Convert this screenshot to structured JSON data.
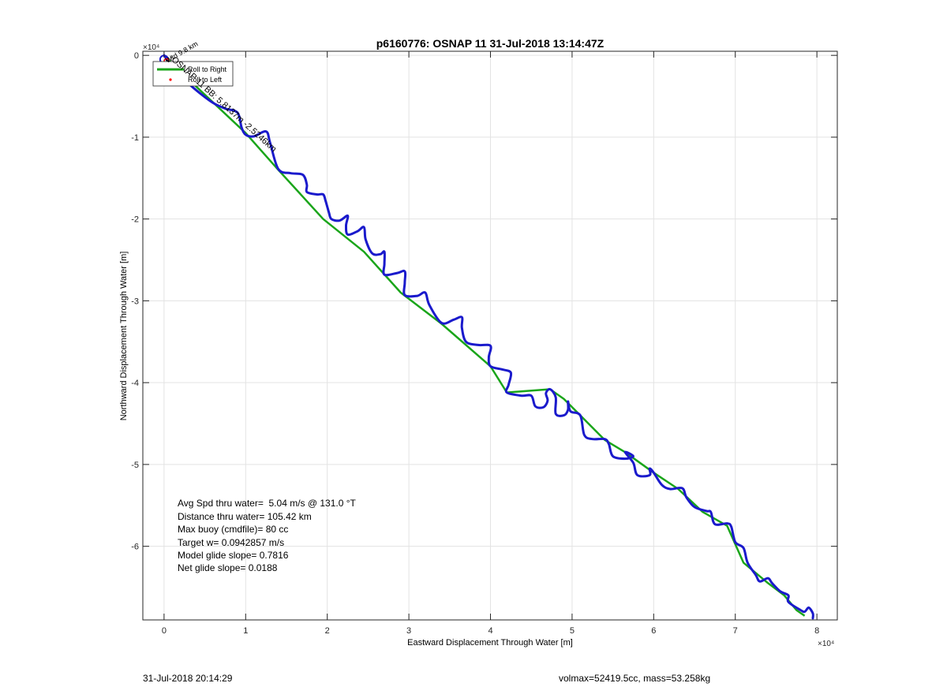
{
  "chart_data": {
    "type": "line",
    "title": "p6160776: OSNAP 11 31-Jul-2018 13:14:47Z",
    "xlabel": "Eastward Displacement Through Water [m]",
    "ylabel": "Northward Displacement Through Water [m]",
    "x_exponent_label": "×10⁴",
    "y_exponent_label": "×10⁴",
    "xlim": [
      -2600,
      82500
    ],
    "ylim": [
      -69000,
      500
    ],
    "x_ticks": [
      0,
      10000,
      20000,
      30000,
      40000,
      50000,
      60000,
      70000,
      80000
    ],
    "x_tick_labels": [
      "0",
      "1",
      "2",
      "3",
      "4",
      "5",
      "6",
      "7",
      "8"
    ],
    "y_ticks": [
      0,
      -10000,
      -20000,
      -30000,
      -40000,
      -50000,
      -60000
    ],
    "y_tick_labels": [
      "0",
      "-1",
      "-2",
      "-3",
      "-4",
      "-5",
      "-6"
    ],
    "grid": true,
    "legend": {
      "position": "top-left",
      "entries": [
        {
          "label": "Roll to Right",
          "color": "#1aa51a"
        },
        {
          "label": "Roll to Left",
          "color": "#ff0000"
        }
      ]
    },
    "series": [
      {
        "color": "#1aa51a",
        "points": [
          [
            0,
            0
          ],
          [
            2000,
            -2000
          ],
          [
            10000,
            -9500
          ],
          [
            14000,
            -14000
          ],
          [
            19500,
            -20000
          ],
          [
            24500,
            -24000
          ],
          [
            29000,
            -29000
          ],
          [
            34000,
            -32800
          ],
          [
            40000,
            -38000
          ],
          [
            42000,
            -41200
          ],
          [
            47300,
            -40800
          ],
          [
            49000,
            -42000
          ],
          [
            51000,
            -44000
          ],
          [
            54000,
            -47000
          ],
          [
            56500,
            -48500
          ],
          [
            60000,
            -51000
          ],
          [
            63000,
            -53000
          ],
          [
            66000,
            -55800
          ],
          [
            69000,
            -57500
          ],
          [
            71000,
            -62000
          ],
          [
            74000,
            -64500
          ],
          [
            76000,
            -66000
          ],
          [
            77500,
            -67800
          ],
          [
            78500,
            -68500
          ]
        ]
      },
      {
        "color": "#1a1acc",
        "points": [
          [
            0,
            0
          ],
          [
            2000,
            -2500
          ],
          [
            4000,
            -4300
          ],
          [
            6000,
            -5800
          ],
          [
            7500,
            -6500
          ],
          [
            9000,
            -7000
          ],
          [
            9500,
            -8800
          ],
          [
            10000,
            -9700
          ],
          [
            11000,
            -9900
          ],
          [
            12500,
            -9300
          ],
          [
            13000,
            -10700
          ],
          [
            14000,
            -13900
          ],
          [
            15500,
            -14400
          ],
          [
            17000,
            -14600
          ],
          [
            17500,
            -15800
          ],
          [
            17500,
            -16700
          ],
          [
            18700,
            -17000
          ],
          [
            19500,
            -17000
          ],
          [
            19800,
            -17800
          ],
          [
            20200,
            -19200
          ],
          [
            20500,
            -20000
          ],
          [
            21500,
            -20200
          ],
          [
            22500,
            -19600
          ],
          [
            22300,
            -20800
          ],
          [
            22500,
            -21900
          ],
          [
            23700,
            -21500
          ],
          [
            24500,
            -21000
          ],
          [
            24700,
            -22500
          ],
          [
            25500,
            -24200
          ],
          [
            26500,
            -24300
          ],
          [
            27000,
            -24000
          ],
          [
            27000,
            -25500
          ],
          [
            27000,
            -26800
          ],
          [
            28600,
            -26600
          ],
          [
            29500,
            -26400
          ],
          [
            29500,
            -27800
          ],
          [
            29500,
            -29300
          ],
          [
            31000,
            -29400
          ],
          [
            32000,
            -29000
          ],
          [
            32500,
            -30500
          ],
          [
            34000,
            -32700
          ],
          [
            35500,
            -32300
          ],
          [
            36500,
            -32000
          ],
          [
            36500,
            -33300
          ],
          [
            37000,
            -35000
          ],
          [
            38500,
            -35400
          ],
          [
            40000,
            -35500
          ],
          [
            39800,
            -36900
          ],
          [
            40000,
            -38000
          ],
          [
            41500,
            -38400
          ],
          [
            42500,
            -38800
          ],
          [
            42200,
            -40300
          ],
          [
            42000,
            -41200
          ],
          [
            43800,
            -41600
          ],
          [
            45000,
            -41600
          ],
          [
            45500,
            -42900
          ],
          [
            46500,
            -43000
          ],
          [
            47000,
            -42200
          ],
          [
            46800,
            -41300
          ],
          [
            47300,
            -40800
          ],
          [
            48000,
            -41800
          ],
          [
            48000,
            -43800
          ],
          [
            49000,
            -44000
          ],
          [
            49500,
            -43300
          ],
          [
            49500,
            -42300
          ],
          [
            49800,
            -43500
          ],
          [
            51000,
            -44000
          ],
          [
            51500,
            -46400
          ],
          [
            52500,
            -46900
          ],
          [
            54000,
            -46900
          ],
          [
            54500,
            -47500
          ],
          [
            55000,
            -49000
          ],
          [
            56500,
            -49300
          ],
          [
            57500,
            -49000
          ],
          [
            56500,
            -48500
          ],
          [
            57500,
            -49800
          ],
          [
            58000,
            -51300
          ],
          [
            59500,
            -51300
          ],
          [
            59500,
            -50500
          ],
          [
            60000,
            -51000
          ],
          [
            61000,
            -52500
          ],
          [
            62000,
            -53000
          ],
          [
            63500,
            -52900
          ],
          [
            64000,
            -54000
          ],
          [
            65000,
            -55200
          ],
          [
            66500,
            -55700
          ],
          [
            67000,
            -55800
          ],
          [
            67500,
            -57300
          ],
          [
            69000,
            -57200
          ],
          [
            69500,
            -57600
          ],
          [
            70000,
            -59500
          ],
          [
            71000,
            -60200
          ],
          [
            71500,
            -62000
          ],
          [
            72500,
            -63500
          ],
          [
            73000,
            -64300
          ],
          [
            74000,
            -63900
          ],
          [
            74500,
            -64500
          ],
          [
            75500,
            -65500
          ],
          [
            76500,
            -66000
          ],
          [
            76500,
            -66800
          ],
          [
            78000,
            -67800
          ],
          [
            78500,
            -68000
          ],
          [
            79000,
            -67500
          ],
          [
            79500,
            -68200
          ],
          [
            79500,
            -68800
          ]
        ]
      }
    ],
    "annotations": [
      {
        "text": "Wtd 9.8 km",
        "rotation_deg": -30
      },
      {
        "text": "-OSNAP 11 BB: 5.8137m -2.5246km",
        "rotation_deg": 42
      },
      {
        "text": "Avg Spd thru water=  5.04 m/s @ 131.0 °T"
      },
      {
        "text": "Distance thru water= 105.42 km"
      },
      {
        "text": "Max buoy (cmdfile)= 80 cc"
      },
      {
        "text": "Target w= 0.0942857 m/s"
      },
      {
        "text": "Model glide slope= 0.7816"
      },
      {
        "text": "Net glide slope= 0.0188"
      }
    ]
  },
  "footer": {
    "left": "31-Jul-2018 20:14:29",
    "right": "volmax=52419.5cc, mass=53.258kg"
  }
}
